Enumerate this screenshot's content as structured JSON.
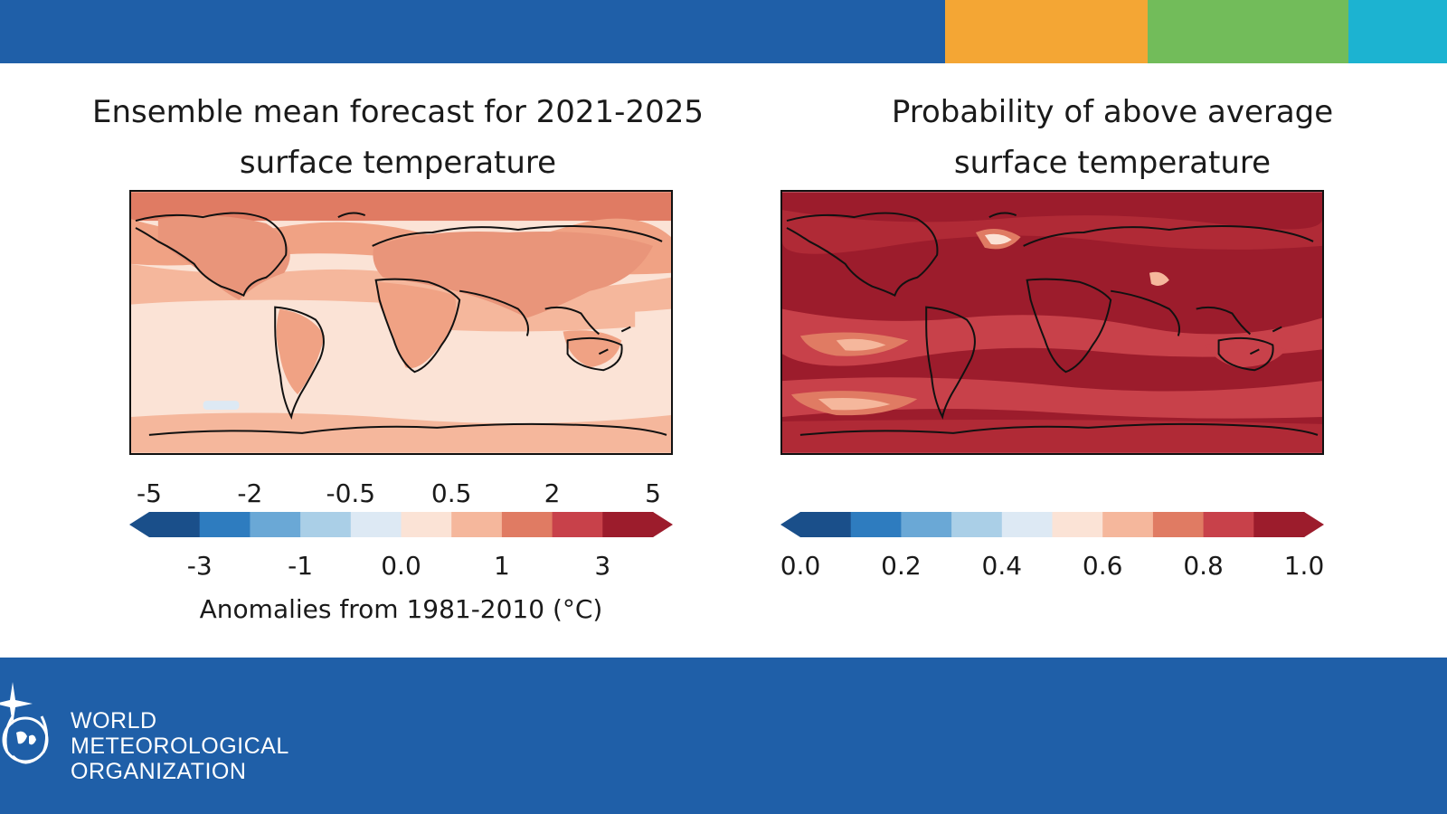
{
  "header": {
    "colors": [
      "#1f5fa8",
      "#f4a634",
      "#72bc5a",
      "#1cb3d1"
    ]
  },
  "panels": {
    "left": {
      "title_line1": "Ensemble mean forecast for 2021-2025",
      "title_line2": "surface temperature",
      "colorbar": {
        "top_ticks": [
          "-5",
          "-2",
          "-0.5",
          "0.5",
          "2",
          "5"
        ],
        "bottom_ticks": [
          "-3",
          "-1",
          "0.0",
          "1",
          "3"
        ],
        "caption": "Anomalies from 1981-2010 (°C)",
        "colors": [
          "#1a4f8a",
          "#2e7cbf",
          "#6aa8d6",
          "#aacfe7",
          "#dde9f4",
          "#fbe3d6",
          "#f5b79c",
          "#e07b63",
          "#c8414a",
          "#9c1c2c"
        ]
      }
    },
    "right": {
      "title_line1": "Probability of above average",
      "title_line2": "surface temperature",
      "colorbar": {
        "ticks": [
          "0.0",
          "0.2",
          "0.4",
          "0.6",
          "0.8",
          "1.0"
        ],
        "colors": [
          "#1a4f8a",
          "#2e7cbf",
          "#6aa8d6",
          "#aacfe7",
          "#dde9f4",
          "#fbe3d6",
          "#f5b79c",
          "#e07b63",
          "#c8414a",
          "#9c1c2c"
        ]
      }
    }
  },
  "footer": {
    "org_line1": "WORLD",
    "org_line2": "METEOROLOGICAL",
    "org_line3": "ORGANIZATION",
    "logo_icon": "wmo-emblem-icon"
  }
}
